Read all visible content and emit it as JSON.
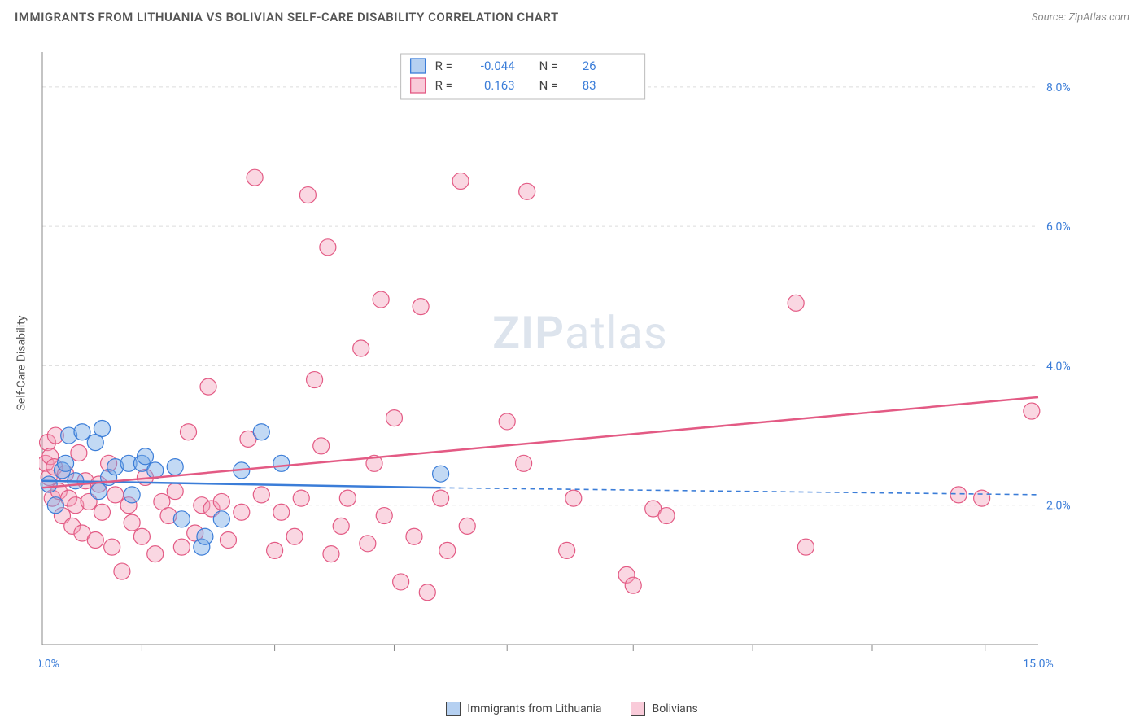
{
  "header": {
    "title": "IMMIGRANTS FROM LITHUANIA VS BOLIVIAN SELF-CARE DISABILITY CORRELATION CHART",
    "source_prefix": "Source: ",
    "source_name": "ZipAtlas.com"
  },
  "axes": {
    "y_label": "Self-Care Disability",
    "x_min": 0.0,
    "x_max": 15.0,
    "y_min": 0.0,
    "y_max": 8.5,
    "y_ticks": [
      2.0,
      4.0,
      6.0,
      8.0
    ],
    "y_tick_labels": [
      "2.0%",
      "4.0%",
      "6.0%",
      "8.0%"
    ],
    "x_ticks_minor": [
      1.5,
      3.5,
      5.3,
      7.0,
      8.9,
      10.7,
      12.5,
      14.2
    ],
    "x_tick_left": "0.0%",
    "x_tick_right": "15.0%"
  },
  "series": {
    "blue": {
      "label": "Immigrants from Lithuania",
      "color_fill": "rgba(120,170,230,0.45)",
      "color_stroke": "#3b7dd8",
      "R": "-0.044",
      "N": "26",
      "marker_radius": 10,
      "trend": {
        "x1": 0.0,
        "y1": 2.35,
        "x2": 6.0,
        "y2": 2.25,
        "extend_dash_to_x": 15.0,
        "extend_dash_y": 2.15
      },
      "points": [
        [
          0.1,
          2.3
        ],
        [
          0.2,
          2.0
        ],
        [
          0.3,
          2.5
        ],
        [
          0.35,
          2.6
        ],
        [
          0.4,
          3.0
        ],
        [
          0.5,
          2.35
        ],
        [
          0.6,
          3.05
        ],
        [
          0.8,
          2.9
        ],
        [
          0.85,
          2.2
        ],
        [
          0.9,
          3.1
        ],
        [
          1.0,
          2.4
        ],
        [
          1.1,
          2.55
        ],
        [
          1.3,
          2.6
        ],
        [
          1.35,
          2.15
        ],
        [
          1.5,
          2.6
        ],
        [
          1.55,
          2.7
        ],
        [
          1.7,
          2.5
        ],
        [
          2.0,
          2.55
        ],
        [
          2.1,
          1.8
        ],
        [
          2.4,
          1.4
        ],
        [
          2.45,
          1.55
        ],
        [
          2.7,
          1.8
        ],
        [
          3.0,
          2.5
        ],
        [
          3.3,
          3.05
        ],
        [
          3.6,
          2.6
        ],
        [
          6.0,
          2.45
        ]
      ]
    },
    "pink": {
      "label": "Bolivians",
      "color_fill": "rgba(244,160,185,0.42)",
      "color_stroke": "#e35a84",
      "R": "0.163",
      "N": "83",
      "marker_radius": 10,
      "trend": {
        "x1": 0.0,
        "y1": 2.25,
        "x2": 15.0,
        "y2": 3.55
      },
      "points": [
        [
          0.05,
          2.6
        ],
        [
          0.08,
          2.9
        ],
        [
          0.1,
          2.4
        ],
        [
          0.12,
          2.7
        ],
        [
          0.15,
          2.1
        ],
        [
          0.18,
          2.55
        ],
        [
          0.2,
          3.0
        ],
        [
          0.25,
          2.2
        ],
        [
          0.3,
          1.85
        ],
        [
          0.35,
          2.45
        ],
        [
          0.4,
          2.1
        ],
        [
          0.45,
          1.7
        ],
        [
          0.5,
          2.0
        ],
        [
          0.55,
          2.75
        ],
        [
          0.6,
          1.6
        ],
        [
          0.65,
          2.35
        ],
        [
          0.7,
          2.05
        ],
        [
          0.8,
          1.5
        ],
        [
          0.85,
          2.3
        ],
        [
          0.9,
          1.9
        ],
        [
          1.0,
          2.6
        ],
        [
          1.05,
          1.4
        ],
        [
          1.1,
          2.15
        ],
        [
          1.2,
          1.05
        ],
        [
          1.3,
          2.0
        ],
        [
          1.35,
          1.75
        ],
        [
          1.5,
          1.55
        ],
        [
          1.55,
          2.4
        ],
        [
          1.7,
          1.3
        ],
        [
          1.8,
          2.05
        ],
        [
          1.9,
          1.85
        ],
        [
          2.0,
          2.2
        ],
        [
          2.1,
          1.4
        ],
        [
          2.2,
          3.05
        ],
        [
          2.3,
          1.6
        ],
        [
          2.4,
          2.0
        ],
        [
          2.5,
          3.7
        ],
        [
          2.55,
          1.95
        ],
        [
          2.7,
          2.05
        ],
        [
          2.8,
          1.5
        ],
        [
          3.0,
          1.9
        ],
        [
          3.1,
          2.95
        ],
        [
          3.2,
          6.7
        ],
        [
          3.3,
          2.15
        ],
        [
          3.5,
          1.35
        ],
        [
          3.6,
          1.9
        ],
        [
          3.8,
          1.55
        ],
        [
          3.9,
          2.1
        ],
        [
          4.0,
          6.45
        ],
        [
          4.1,
          3.8
        ],
        [
          4.2,
          2.85
        ],
        [
          4.3,
          5.7
        ],
        [
          4.35,
          1.3
        ],
        [
          4.5,
          1.7
        ],
        [
          4.6,
          2.1
        ],
        [
          4.8,
          4.25
        ],
        [
          4.9,
          1.45
        ],
        [
          5.0,
          2.6
        ],
        [
          5.1,
          4.95
        ],
        [
          5.15,
          1.85
        ],
        [
          5.3,
          3.25
        ],
        [
          5.4,
          0.9
        ],
        [
          5.6,
          1.55
        ],
        [
          5.7,
          4.85
        ],
        [
          5.8,
          0.75
        ],
        [
          6.0,
          2.1
        ],
        [
          6.1,
          1.35
        ],
        [
          6.3,
          6.65
        ],
        [
          6.4,
          1.7
        ],
        [
          7.0,
          3.2
        ],
        [
          7.25,
          2.6
        ],
        [
          7.3,
          6.5
        ],
        [
          7.9,
          1.35
        ],
        [
          8.0,
          2.1
        ],
        [
          8.8,
          1.0
        ],
        [
          8.9,
          0.85
        ],
        [
          9.2,
          1.95
        ],
        [
          9.4,
          1.85
        ],
        [
          11.35,
          4.9
        ],
        [
          11.5,
          1.4
        ],
        [
          13.8,
          2.15
        ],
        [
          14.15,
          2.1
        ],
        [
          14.9,
          3.35
        ]
      ]
    }
  },
  "correlation_box": {
    "rows": [
      {
        "swatch": "blue",
        "R_label": "R =",
        "R": "-0.044",
        "N_label": "N =",
        "N": "26"
      },
      {
        "swatch": "pink",
        "R_label": "R =",
        "R": "0.163",
        "N_label": "N =",
        "N": "83"
      }
    ]
  },
  "watermark": {
    "bold": "ZIP",
    "rest": "atlas"
  },
  "style": {
    "background": "#ffffff",
    "grid_color": "#dcdcdc",
    "axis_color": "#888888",
    "tick_label_color": "#3b7dd8",
    "blue": "#3b7dd8",
    "pink": "#e35a84",
    "title_color": "#555555"
  }
}
